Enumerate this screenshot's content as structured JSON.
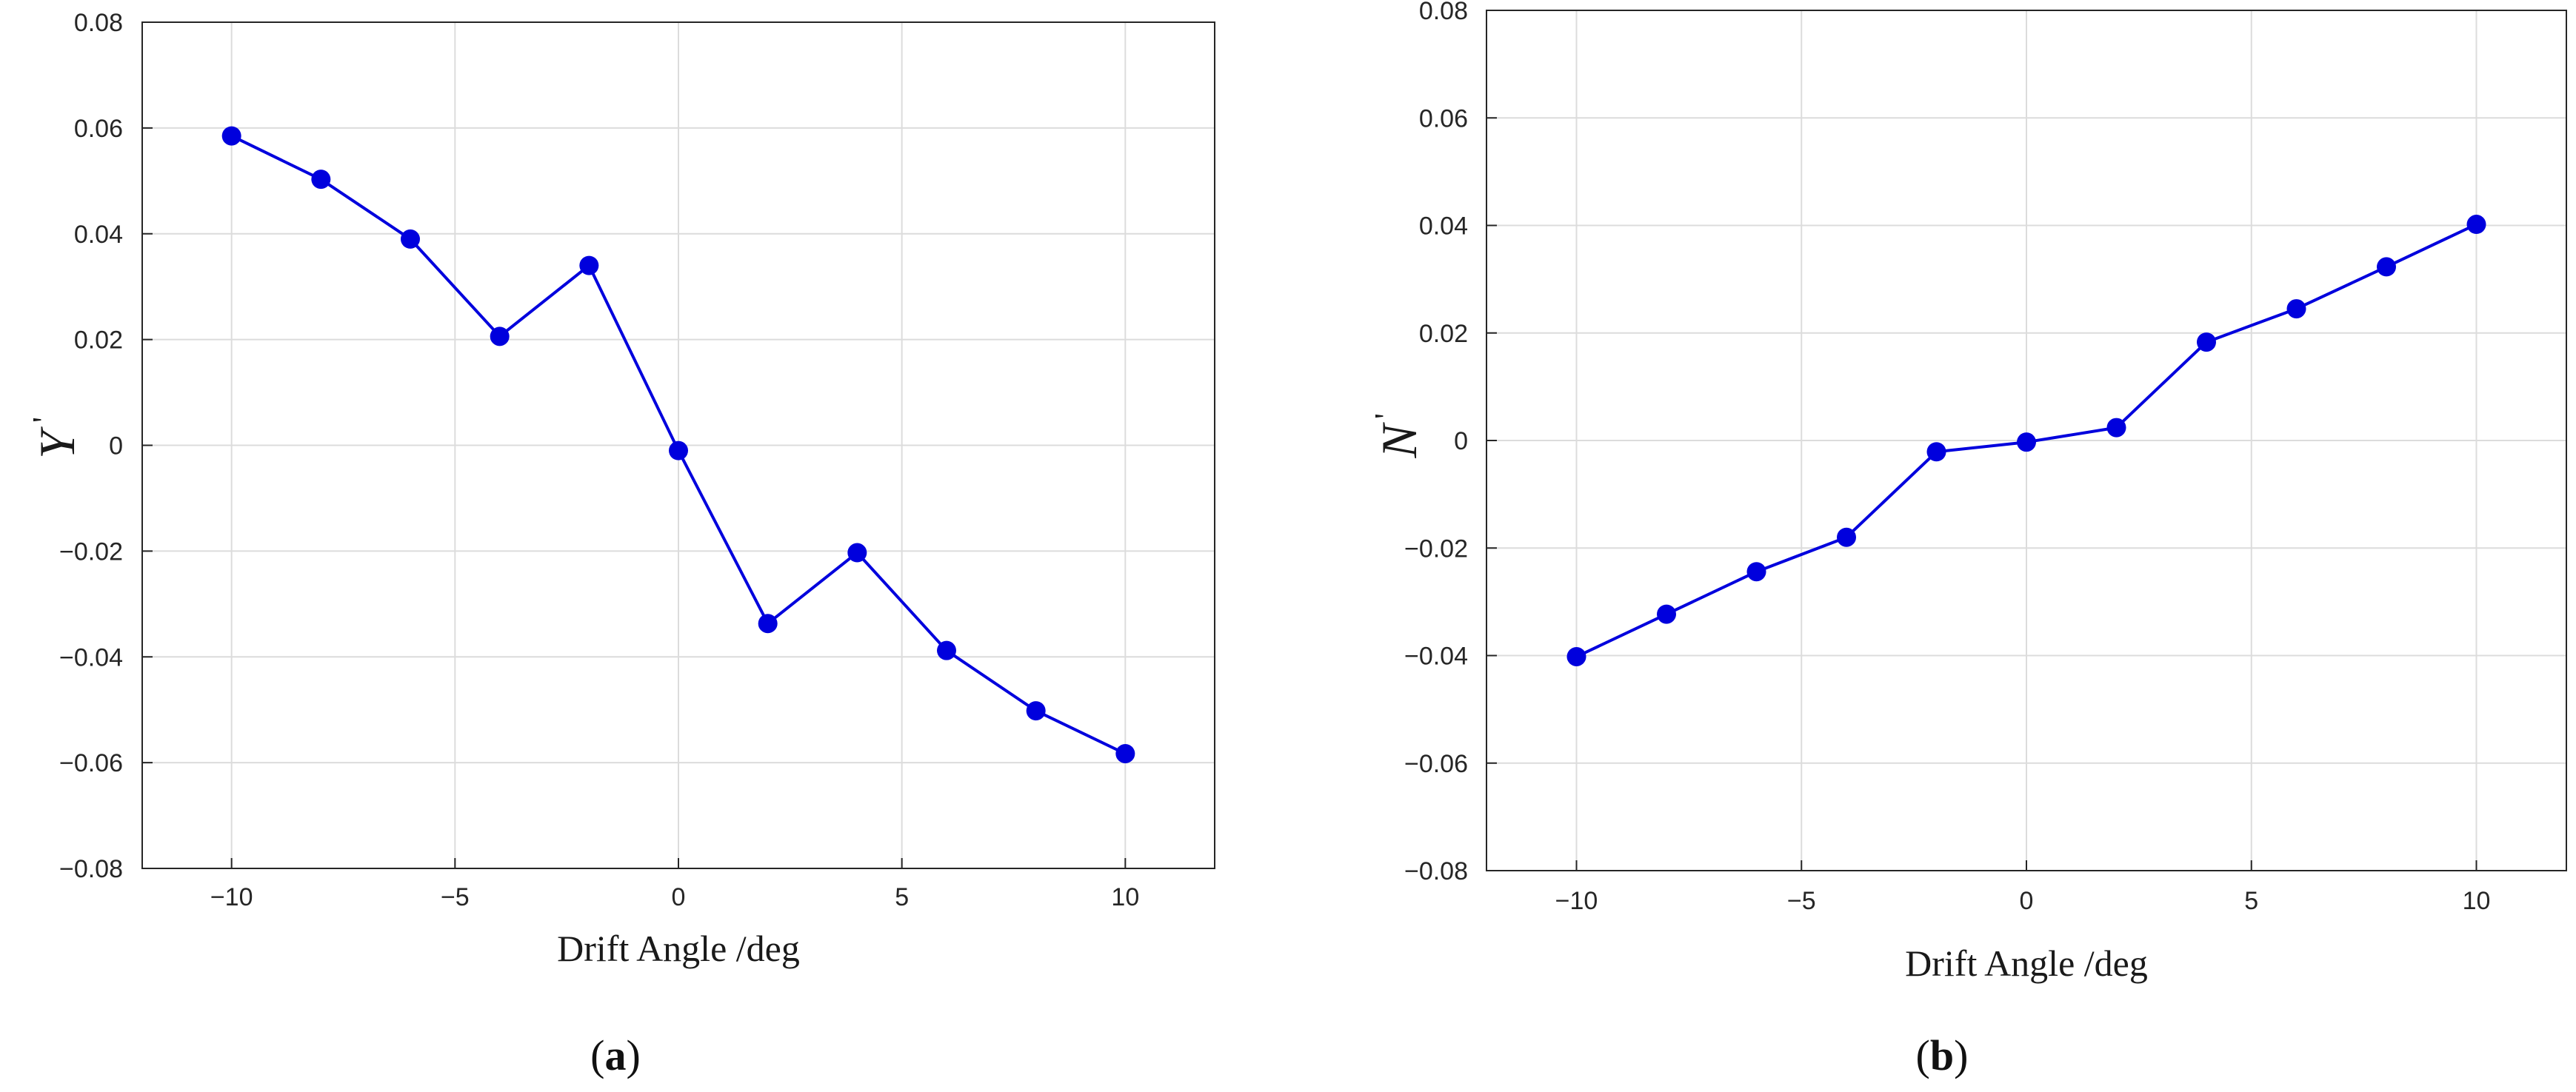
{
  "chart_data": [
    {
      "type": "line",
      "caption": {
        "open": "(",
        "letter": "a",
        "close": ")"
      },
      "xlabel": "Drift Angle /deg",
      "ylabel": "Y",
      "ylabel_prime": "'",
      "xlim": [
        -12,
        12
      ],
      "ylim": [
        -0.08,
        0.08
      ],
      "xticks": [
        -10,
        -5,
        0,
        5,
        10
      ],
      "xtick_labels": [
        "−10",
        "−5",
        "0",
        "5",
        "10"
      ],
      "yticks": [
        -0.08,
        -0.06,
        -0.04,
        -0.02,
        0,
        0.02,
        0.04,
        0.06,
        0.08
      ],
      "ytick_labels": [
        "−0.08",
        "−0.06",
        "−0.04",
        "−0.02",
        "0",
        "0.02",
        "0.04",
        "0.06",
        "0.08"
      ],
      "grid": true,
      "color": "#0000dd",
      "x": [
        -10,
        -8,
        -6,
        -4,
        -2,
        0,
        2,
        4,
        6,
        8,
        10
      ],
      "y": [
        0.0585,
        0.0503,
        0.039,
        0.0206,
        0.034,
        -0.001,
        -0.0337,
        -0.0203,
        -0.0388,
        -0.0502,
        -0.0583
      ]
    },
    {
      "type": "line",
      "caption": {
        "open": "(",
        "letter": "b",
        "close": ")"
      },
      "xlabel": "Drift Angle /deg",
      "ylabel": "N",
      "ylabel_prime": "'",
      "xlim": [
        -12,
        12
      ],
      "ylim": [
        -0.08,
        0.08
      ],
      "xticks": [
        -10,
        -5,
        0,
        5,
        10
      ],
      "xtick_labels": [
        "−10",
        "−5",
        "0",
        "5",
        "10"
      ],
      "yticks": [
        -0.08,
        -0.06,
        -0.04,
        -0.02,
        0,
        0.02,
        0.04,
        0.06,
        0.08
      ],
      "ytick_labels": [
        "−0.08",
        "−0.06",
        "−0.04",
        "−0.02",
        "0",
        "0.02",
        "0.04",
        "0.06",
        "0.08"
      ],
      "grid": true,
      "color": "#0000dd",
      "x": [
        -10,
        -8,
        -6,
        -4,
        -2,
        0,
        2,
        4,
        6,
        8,
        10
      ],
      "y": [
        -0.0402,
        -0.0323,
        -0.0244,
        -0.018,
        -0.0021,
        -0.0003,
        0.0024,
        0.0183,
        0.0245,
        0.0323,
        0.0402
      ]
    }
  ]
}
